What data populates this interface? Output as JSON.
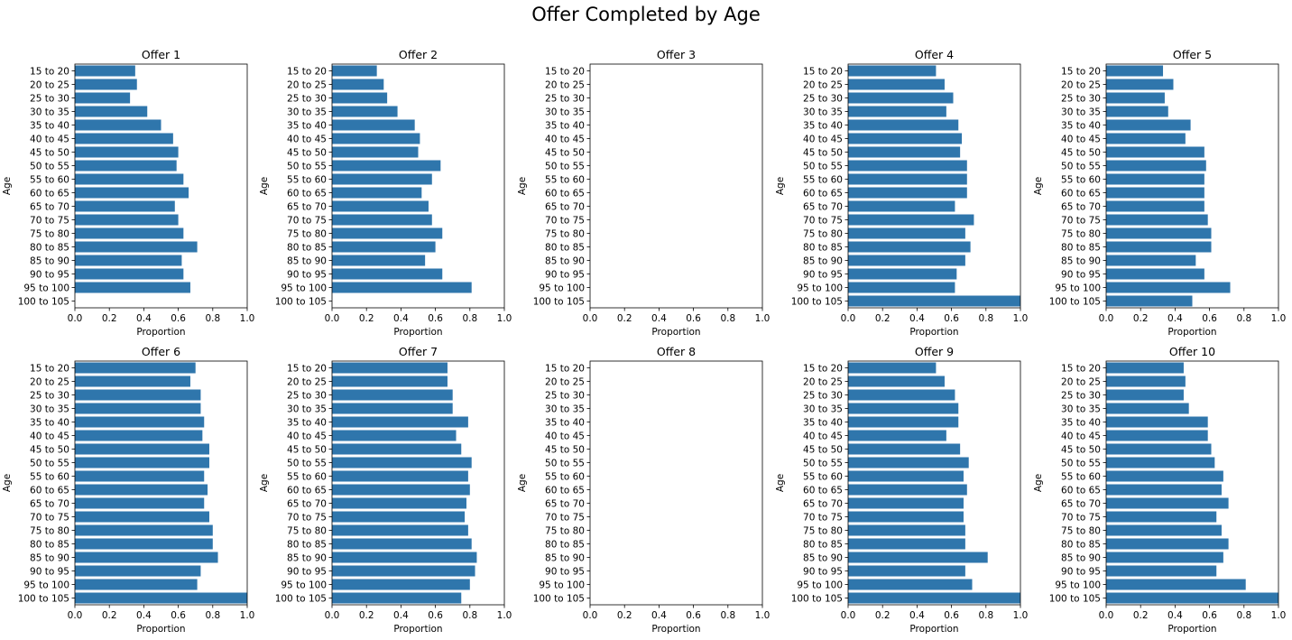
{
  "figure": {
    "title": "Offer Completed by Age"
  },
  "chart_data": {
    "type": "bar",
    "orientation": "horizontal",
    "bar_color": "#2f76ac",
    "xlabel": "Proportion",
    "ylabel": "Age",
    "xlim": [
      0,
      1
    ],
    "xticks": [
      "0.0",
      "0.2",
      "0.4",
      "0.6",
      "0.8",
      "1.0"
    ],
    "grid": false,
    "categories": [
      "15 to 20",
      "20 to 25",
      "25 to 30",
      "30 to 35",
      "35 to 40",
      "40 to 45",
      "45 to 50",
      "50 to 55",
      "55 to 60",
      "60 to 65",
      "65 to 70",
      "70 to 75",
      "75 to 80",
      "80 to 85",
      "85 to 90",
      "90 to 95",
      "95 to 100",
      "100 to 105"
    ],
    "panels": [
      {
        "title": "Offer 1",
        "values": [
          0.35,
          0.36,
          0.32,
          0.42,
          0.5,
          0.57,
          0.6,
          0.59,
          0.63,
          0.66,
          0.58,
          0.6,
          0.63,
          0.71,
          0.62,
          0.63,
          0.67,
          null
        ]
      },
      {
        "title": "Offer 2",
        "values": [
          0.26,
          0.3,
          0.32,
          0.38,
          0.48,
          0.51,
          0.5,
          0.63,
          0.58,
          0.52,
          0.56,
          0.58,
          0.64,
          0.6,
          0.54,
          0.64,
          0.81,
          null
        ]
      },
      {
        "title": "Offer 3",
        "values": [
          null,
          null,
          null,
          null,
          null,
          null,
          null,
          null,
          null,
          null,
          null,
          null,
          null,
          null,
          null,
          null,
          null,
          null
        ]
      },
      {
        "title": "Offer 4",
        "values": [
          0.51,
          0.56,
          0.61,
          0.57,
          0.64,
          0.66,
          0.65,
          0.69,
          0.69,
          0.69,
          0.62,
          0.73,
          0.68,
          0.71,
          0.68,
          0.63,
          0.62,
          1.0
        ]
      },
      {
        "title": "Offer 5",
        "values": [
          0.33,
          0.39,
          0.34,
          0.36,
          0.49,
          0.46,
          0.57,
          0.58,
          0.57,
          0.57,
          0.57,
          0.59,
          0.61,
          0.61,
          0.52,
          0.57,
          0.72,
          0.5
        ]
      },
      {
        "title": "Offer 6",
        "values": [
          0.7,
          0.67,
          0.73,
          0.73,
          0.75,
          0.74,
          0.78,
          0.78,
          0.75,
          0.77,
          0.75,
          0.78,
          0.8,
          0.8,
          0.83,
          0.73,
          0.71,
          1.0
        ]
      },
      {
        "title": "Offer 7",
        "values": [
          0.67,
          0.67,
          0.7,
          0.7,
          0.79,
          0.72,
          0.75,
          0.81,
          0.79,
          0.8,
          0.78,
          0.77,
          0.79,
          0.81,
          0.84,
          0.83,
          0.8,
          0.75
        ]
      },
      {
        "title": "Offer 8",
        "values": [
          null,
          null,
          null,
          null,
          null,
          null,
          null,
          null,
          null,
          null,
          null,
          null,
          null,
          null,
          null,
          null,
          null,
          null
        ]
      },
      {
        "title": "Offer 9",
        "values": [
          0.51,
          0.56,
          0.62,
          0.64,
          0.64,
          0.57,
          0.65,
          0.7,
          0.67,
          0.69,
          0.67,
          0.67,
          0.68,
          0.68,
          0.81,
          0.68,
          0.72,
          1.0
        ]
      },
      {
        "title": "Offer 10",
        "values": [
          0.45,
          0.46,
          0.45,
          0.48,
          0.59,
          0.59,
          0.61,
          0.63,
          0.68,
          0.67,
          0.71,
          0.64,
          0.67,
          0.71,
          0.68,
          0.64,
          0.81,
          1.0
        ]
      }
    ]
  }
}
